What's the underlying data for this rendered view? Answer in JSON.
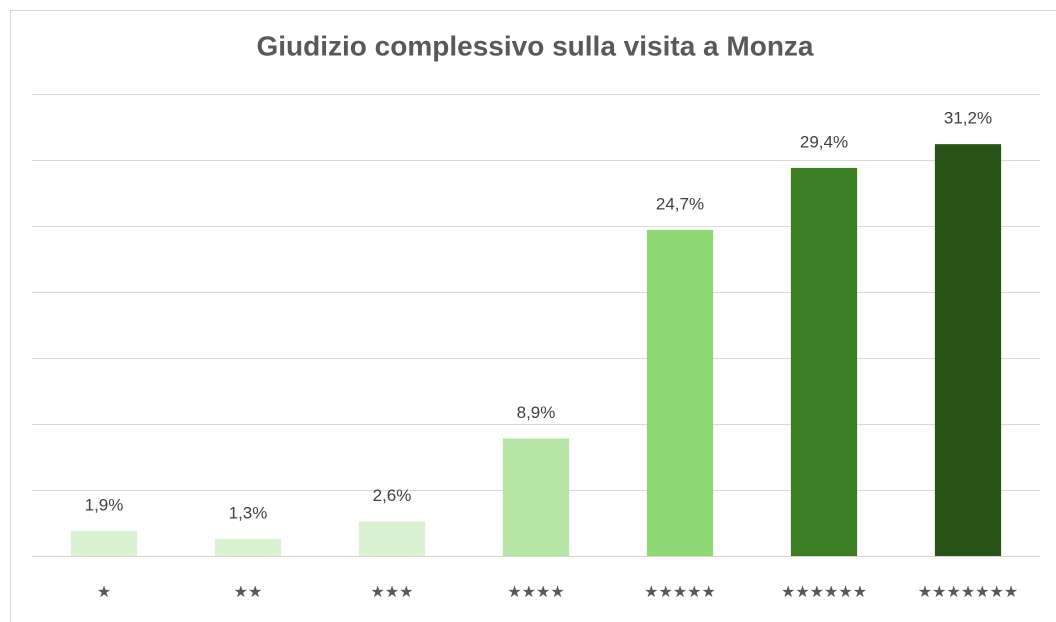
{
  "chart_data": {
    "type": "bar",
    "title": "Giudizio complessivo sulla visita a Monza",
    "categories": [
      "★",
      "★★",
      "★★★",
      "★★★★",
      "★★★★★",
      "★★★★★★",
      "★★★★★★★"
    ],
    "values": [
      1.9,
      1.3,
      2.6,
      8.9,
      24.7,
      29.4,
      31.2
    ],
    "value_labels": [
      "1,9%",
      "1,3%",
      "2,6%",
      "8,9%",
      "24,7%",
      "29,4%",
      "31,2%"
    ],
    "colors": [
      "#d9f2d0",
      "#d9f2d0",
      "#d9f2d0",
      "#b4e5a2",
      "#8ed873",
      "#3b7d23",
      "#275317"
    ],
    "ylim": [
      0,
      35
    ],
    "yticks": [
      0,
      5,
      10,
      15,
      20,
      25,
      30,
      35
    ],
    "grid": true
  }
}
